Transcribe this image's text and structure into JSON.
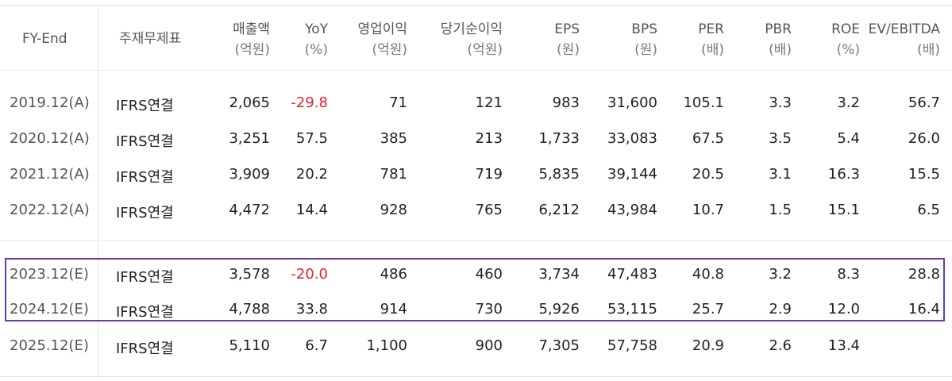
{
  "header": {
    "fy_end": "FY-End",
    "financials": "주재무제표",
    "sales": {
      "title": "매출액",
      "unit": "(억원)"
    },
    "yoy": {
      "title": "YoY",
      "unit": "(%)"
    },
    "op_income": {
      "title": "영업이익",
      "unit": "(억원)"
    },
    "net_income": {
      "title": "당기순이익",
      "unit": "(억원)"
    },
    "eps": {
      "title": "EPS",
      "unit": "(원)"
    },
    "bps": {
      "title": "BPS",
      "unit": "(원)"
    },
    "per": {
      "title": "PER",
      "unit": "(배)"
    },
    "pbr": {
      "title": "PBR",
      "unit": "(배)"
    },
    "roe": {
      "title": "ROE",
      "unit": "(%)"
    },
    "ev_ebitda": {
      "title": "EV/EBITDA",
      "unit": "(배)"
    }
  },
  "rows": [
    {
      "period": "2019.12(A)",
      "basis": "IFRS연결",
      "sales": "2,065",
      "yoy": "-29.8",
      "op_income": "71",
      "net_income": "121",
      "eps": "983",
      "bps": "31,600",
      "per": "105.1",
      "pbr": "3.3",
      "roe": "3.2",
      "ev_ebitda": "56.7"
    },
    {
      "period": "2020.12(A)",
      "basis": "IFRS연결",
      "sales": "3,251",
      "yoy": "57.5",
      "op_income": "385",
      "net_income": "213",
      "eps": "1,733",
      "bps": "33,083",
      "per": "67.5",
      "pbr": "3.5",
      "roe": "5.4",
      "ev_ebitda": "26.0"
    },
    {
      "period": "2021.12(A)",
      "basis": "IFRS연결",
      "sales": "3,909",
      "yoy": "20.2",
      "op_income": "781",
      "net_income": "719",
      "eps": "5,835",
      "bps": "39,144",
      "per": "20.5",
      "pbr": "3.1",
      "roe": "16.3",
      "ev_ebitda": "15.5"
    },
    {
      "period": "2022.12(A)",
      "basis": "IFRS연결",
      "sales": "4,472",
      "yoy": "14.4",
      "op_income": "928",
      "net_income": "765",
      "eps": "6,212",
      "bps": "43,984",
      "per": "10.7",
      "pbr": "1.5",
      "roe": "15.1",
      "ev_ebitda": "6.5"
    },
    {
      "period": "2023.12(E)",
      "basis": "IFRS연결",
      "sales": "3,578",
      "yoy": "-20.0",
      "op_income": "486",
      "net_income": "460",
      "eps": "3,734",
      "bps": "47,483",
      "per": "40.8",
      "pbr": "3.2",
      "roe": "8.3",
      "ev_ebitda": "28.8"
    },
    {
      "period": "2024.12(E)",
      "basis": "IFRS연결",
      "sales": "4,788",
      "yoy": "33.8",
      "op_income": "914",
      "net_income": "730",
      "eps": "5,926",
      "bps": "53,115",
      "per": "25.7",
      "pbr": "2.9",
      "roe": "12.0",
      "ev_ebitda": "16.4"
    },
    {
      "period": "2025.12(E)",
      "basis": "IFRS연결",
      "sales": "5,110",
      "yoy": "6.7",
      "op_income": "1,100",
      "net_income": "900",
      "eps": "7,305",
      "bps": "57,758",
      "per": "20.9",
      "pbr": "2.6",
      "roe": "13.4",
      "ev_ebitda": ""
    }
  ],
  "colors": {
    "negative": "#e0242c",
    "highlight_border": "#6a3aa3",
    "grid": "#e6e6e6"
  }
}
